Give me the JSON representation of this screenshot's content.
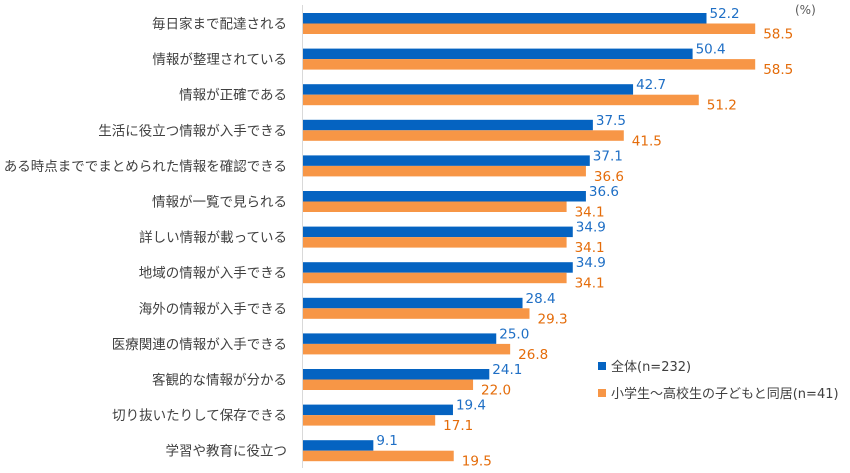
{
  "chart_data": {
    "type": "bar",
    "orientation": "horizontal",
    "unit_label": "(%)",
    "categories": [
      "毎日家まで配達される",
      "情報が整理されている",
      "情報が正確である",
      "生活に役立つ情報が入手できる",
      "ある時点まででまとめられた情報を確認できる",
      "情報が一覧で見られる",
      "詳しい情報が載っている",
      "地域の情報が入手できる",
      "海外の情報が入手できる",
      "医療関連の情報が入手できる",
      "客観的な情報が分かる",
      "切り抜いたりして保存できる",
      "学習や教育に役立つ"
    ],
    "series": [
      {
        "name": "全体(n=232)",
        "color": "#0563C1",
        "label_color": "#1F6FC5",
        "values": [
          52.2,
          50.4,
          42.7,
          37.5,
          37.1,
          36.6,
          34.9,
          34.9,
          28.4,
          25.0,
          24.1,
          19.4,
          9.1
        ],
        "labels": [
          "52.2",
          "50.4",
          "42.7",
          "37.5",
          "37.1",
          "36.6",
          "34.9",
          "34.9",
          "28.4",
          "25.0",
          "24.1",
          "19.4",
          "9.1"
        ]
      },
      {
        "name": "小学生～高校生の子どもと同居(n=41)",
        "color": "#F79646",
        "label_color": "#E46C0A",
        "values": [
          58.5,
          58.5,
          51.2,
          41.5,
          36.6,
          34.1,
          34.1,
          34.1,
          29.3,
          26.8,
          22.0,
          17.1,
          19.5
        ],
        "labels": [
          "58.5",
          "58.5",
          "51.2",
          "41.5",
          "36.6",
          "34.1",
          "34.1",
          "34.1",
          "29.3",
          "26.8",
          "22.0",
          "17.1",
          "19.5"
        ]
      }
    ],
    "xlim": [
      0,
      70
    ],
    "grid": false,
    "legend_position": "bottom-right"
  }
}
